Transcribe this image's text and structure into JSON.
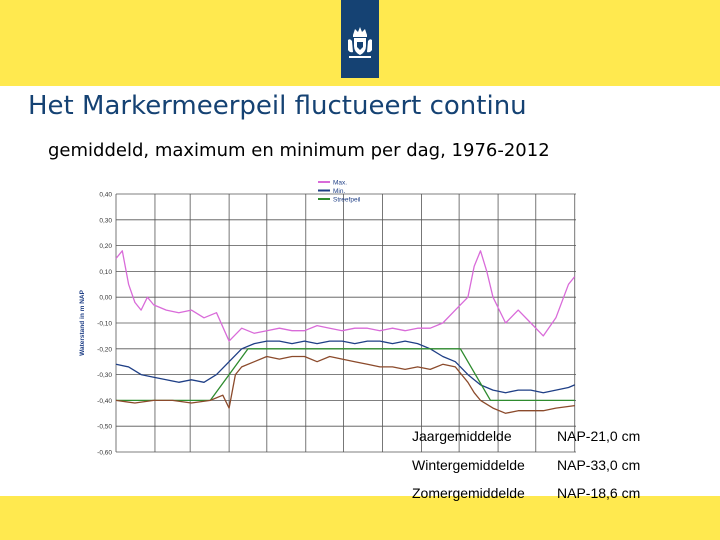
{
  "slide": {
    "title": "Het Markermeerpeil fluctueert continu",
    "subtitle": "gemiddeld, maximum en minimum per dag, 1976-2012"
  },
  "colors": {
    "header_band": "#ffe94f",
    "logo_block": "#154273",
    "title": "#154273",
    "max_series": "#d96bd9",
    "min_series": "#1f3f86",
    "streefpeil_series": "#2e8b2e",
    "mean_series": "#8b4a2b",
    "grid": "#555555"
  },
  "stats": [
    {
      "label": "Jaargemiddelde",
      "value": "NAP-21,0 cm"
    },
    {
      "label": "Wintergemiddelde",
      "value": "NAP-33,0 cm"
    },
    {
      "label": "Zomergemiddelde",
      "value": "NAP-18,6 cm"
    }
  ],
  "chart_data": {
    "type": "line",
    "title": "",
    "xlabel": "",
    "ylabel": "Waterstand in m NAP",
    "xlim": [
      0,
      366
    ],
    "ylim": [
      -0.6,
      0.4
    ],
    "yticks": [
      0.4,
      0.3,
      0.2,
      0.1,
      0.0,
      -0.1,
      -0.2,
      -0.3,
      -0.4,
      -0.5,
      -0.6
    ],
    "ytick_labels": [
      "0,40",
      "0,30",
      "0,20",
      "0,10",
      "0,00",
      "-0,10",
      "-0,20",
      "-0,30",
      "-0,40",
      "-0,50",
      "-0,60"
    ],
    "x_month_boundaries": [
      0,
      31,
      59,
      90,
      120,
      151,
      181,
      212,
      243,
      273,
      304,
      334,
      365
    ],
    "grid": true,
    "legend_position": "top-center",
    "series": [
      {
        "name": "Max.",
        "color": "#d96bd9",
        "x": [
          0,
          5,
          10,
          15,
          20,
          25,
          30,
          40,
          50,
          60,
          70,
          80,
          90,
          100,
          110,
          120,
          130,
          140,
          150,
          160,
          170,
          180,
          190,
          200,
          210,
          220,
          230,
          240,
          250,
          260,
          270,
          280,
          285,
          290,
          295,
          300,
          305,
          310,
          320,
          330,
          340,
          350,
          360,
          365
        ],
        "values": [
          0.15,
          0.18,
          0.05,
          -0.02,
          -0.05,
          0.0,
          -0.03,
          -0.05,
          -0.06,
          -0.05,
          -0.08,
          -0.06,
          -0.17,
          -0.12,
          -0.14,
          -0.13,
          -0.12,
          -0.13,
          -0.13,
          -0.11,
          -0.12,
          -0.13,
          -0.12,
          -0.12,
          -0.13,
          -0.12,
          -0.13,
          -0.12,
          -0.12,
          -0.1,
          -0.05,
          0.0,
          0.12,
          0.18,
          0.1,
          0.0,
          -0.05,
          -0.1,
          -0.05,
          -0.1,
          -0.15,
          -0.08,
          0.05,
          0.08
        ]
      },
      {
        "name": "Min.",
        "color": "#1f3f86",
        "x": [
          0,
          10,
          20,
          30,
          40,
          50,
          60,
          70,
          80,
          90,
          100,
          110,
          120,
          130,
          140,
          150,
          160,
          170,
          180,
          190,
          200,
          210,
          220,
          230,
          240,
          250,
          260,
          270,
          280,
          290,
          300,
          310,
          320,
          330,
          340,
          350,
          360,
          365
        ],
        "values": [
          -0.26,
          -0.27,
          -0.3,
          -0.31,
          -0.32,
          -0.33,
          -0.32,
          -0.33,
          -0.3,
          -0.25,
          -0.2,
          -0.18,
          -0.17,
          -0.17,
          -0.18,
          -0.17,
          -0.18,
          -0.17,
          -0.17,
          -0.18,
          -0.17,
          -0.17,
          -0.18,
          -0.17,
          -0.18,
          -0.2,
          -0.23,
          -0.25,
          -0.3,
          -0.34,
          -0.36,
          -0.37,
          -0.36,
          -0.36,
          -0.37,
          -0.36,
          -0.35,
          -0.34
        ]
      },
      {
        "name": "Streefpeil",
        "color": "#2e8b2e",
        "x": [
          0,
          75,
          105,
          274,
          298,
          365
        ],
        "values": [
          -0.4,
          -0.4,
          -0.2,
          -0.2,
          -0.4,
          -0.4
        ]
      },
      {
        "name": "",
        "color": "#8b4a2b",
        "x": [
          0,
          15,
          30,
          45,
          60,
          75,
          85,
          90,
          95,
          100,
          110,
          120,
          130,
          140,
          150,
          160,
          170,
          180,
          190,
          200,
          210,
          220,
          230,
          240,
          250,
          260,
          270,
          275,
          280,
          285,
          290,
          300,
          310,
          320,
          330,
          340,
          350,
          365
        ],
        "values": [
          -0.4,
          -0.41,
          -0.4,
          -0.4,
          -0.41,
          -0.4,
          -0.38,
          -0.43,
          -0.3,
          -0.27,
          -0.25,
          -0.23,
          -0.24,
          -0.23,
          -0.23,
          -0.25,
          -0.23,
          -0.24,
          -0.25,
          -0.26,
          -0.27,
          -0.27,
          -0.28,
          -0.27,
          -0.28,
          -0.26,
          -0.27,
          -0.3,
          -0.33,
          -0.37,
          -0.4,
          -0.43,
          -0.45,
          -0.44,
          -0.44,
          -0.44,
          -0.43,
          -0.42
        ]
      }
    ]
  }
}
